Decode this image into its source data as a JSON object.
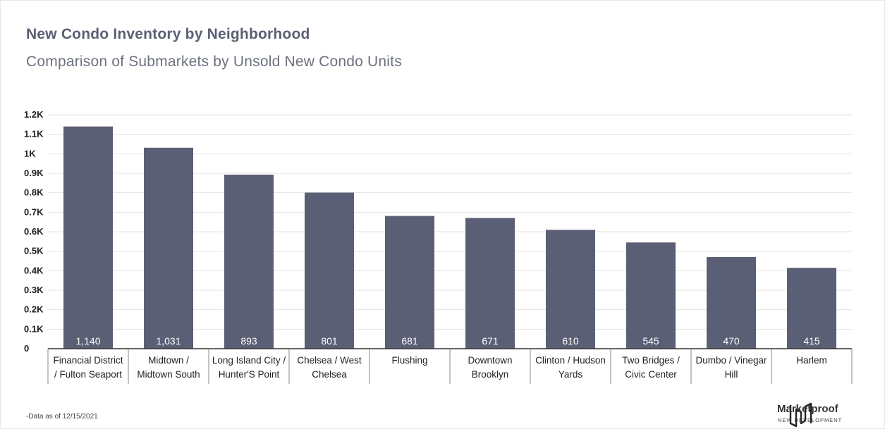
{
  "header": {
    "title": "New Condo Inventory by Neighborhood",
    "subtitle": "Comparison of Submarkets by Unsold New Condo Units"
  },
  "footer": {
    "note": "-Data as of 12/15/2021",
    "brand_name": "Marketproof",
    "brand_tagline": "NEW DEVELOPMENT"
  },
  "chart_data": {
    "type": "bar",
    "title": "New Condo Inventory by Neighborhood",
    "subtitle": "Comparison of Submarkets by Unsold New Condo Units",
    "categories": [
      [
        "Financial District",
        "/ Fulton Seaport"
      ],
      [
        "Midtown /",
        "Midtown South"
      ],
      [
        "Long Island City /",
        "Hunter'S Point"
      ],
      [
        "Chelsea / West",
        "Chelsea"
      ],
      [
        "Flushing"
      ],
      [
        "Downtown",
        "Brooklyn"
      ],
      [
        "Clinton / Hudson",
        "Yards"
      ],
      [
        "Two Bridges /",
        "Civic Center"
      ],
      [
        "Dumbo / Vinegar",
        "Hill"
      ],
      [
        "Harlem"
      ]
    ],
    "values": [
      1140,
      1031,
      893,
      801,
      681,
      671,
      610,
      545,
      470,
      415
    ],
    "data_labels": [
      "1,140",
      "1,031",
      "893",
      "801",
      "681",
      "671",
      "610",
      "545",
      "470",
      "415"
    ],
    "ylim": [
      0,
      1200
    ],
    "yticks": [
      0,
      100,
      200,
      300,
      400,
      500,
      600,
      700,
      800,
      900,
      1000,
      1100,
      1200
    ],
    "ytick_labels": [
      "0",
      "0.1K",
      "0.2K",
      "0.3K",
      "0.4K",
      "0.5K",
      "0.6K",
      "0.7K",
      "0.8K",
      "0.9K",
      "1K",
      "1.1K",
      "1.2K"
    ],
    "grid": true,
    "colors": {
      "bar": "#5b5f75",
      "grid": "#e3e3e3",
      "axis": "#333333",
      "label": "#222222",
      "data_label": "#ffffff"
    }
  }
}
